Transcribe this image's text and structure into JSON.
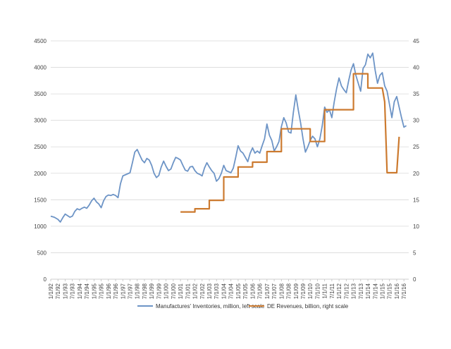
{
  "chart_data": {
    "type": "line",
    "title": "",
    "xlabel": "",
    "ylabel_left": "",
    "ylabel_right": "",
    "ylim_left": [
      0,
      4500
    ],
    "ylim_right": [
      0,
      45
    ],
    "left_ticks": [
      "0",
      "500",
      "1000",
      "1500",
      "2000",
      "2500",
      "3000",
      "3500",
      "4000",
      "4500"
    ],
    "right_ticks": [
      "0",
      "5",
      "10",
      "15",
      "20",
      "25",
      "30",
      "35",
      "40",
      "45"
    ],
    "x_tick_labels": [
      "1/1/92",
      "7/1/92",
      "1/1/93",
      "7/1/93",
      "1/1/94",
      "7/1/94",
      "1/1/95",
      "7/1/95",
      "1/1/96",
      "7/1/96",
      "1/1/97",
      "7/1/97",
      "1/1/98",
      "7/1/98",
      "1/1/99",
      "7/1/99",
      "1/1/00",
      "7/1/00",
      "1/1/01",
      "7/1/01",
      "1/1/02",
      "7/1/02",
      "1/1/03",
      "7/1/03",
      "1/1/04",
      "7/1/04",
      "1/1/05",
      "7/1/05",
      "1/1/06",
      "7/1/06",
      "1/1/07",
      "7/1/07",
      "1/1/08",
      "7/1/08",
      "1/1/09",
      "7/1/09",
      "1/1/10",
      "7/1/10",
      "1/1/11",
      "7/1/11",
      "1/1/12",
      "7/1/12",
      "1/1/13",
      "7/1/13",
      "1/1/14",
      "7/1/14",
      "1/1/15",
      "7/1/15",
      "1/1/16",
      "7/1/16"
    ],
    "grid": "horizontal",
    "legend_position": "bottom",
    "series": [
      {
        "name": "Manufactures' Inventories, million, left scale",
        "axis": "left",
        "color": "#6d94c6",
        "points": [
          [
            "1992-01",
            1190
          ],
          [
            "1992-04",
            1170
          ],
          [
            "1992-07",
            1130
          ],
          [
            "1992-09",
            1080
          ],
          [
            "1992-11",
            1160
          ],
          [
            "1993-01",
            1230
          ],
          [
            "1993-03",
            1200
          ],
          [
            "1993-05",
            1170
          ],
          [
            "1993-07",
            1190
          ],
          [
            "1993-09",
            1280
          ],
          [
            "1993-11",
            1330
          ],
          [
            "1994-01",
            1310
          ],
          [
            "1994-03",
            1340
          ],
          [
            "1994-05",
            1360
          ],
          [
            "1994-07",
            1340
          ],
          [
            "1994-09",
            1400
          ],
          [
            "1994-11",
            1480
          ],
          [
            "1995-01",
            1530
          ],
          [
            "1995-03",
            1460
          ],
          [
            "1995-05",
            1420
          ],
          [
            "1995-07",
            1350
          ],
          [
            "1995-09",
            1480
          ],
          [
            "1995-11",
            1560
          ],
          [
            "1996-01",
            1590
          ],
          [
            "1996-03",
            1580
          ],
          [
            "1996-05",
            1600
          ],
          [
            "1996-07",
            1580
          ],
          [
            "1996-09",
            1540
          ],
          [
            "1996-11",
            1800
          ],
          [
            "1997-01",
            1950
          ],
          [
            "1997-03",
            1970
          ],
          [
            "1997-05",
            1990
          ],
          [
            "1997-07",
            2010
          ],
          [
            "1997-09",
            2200
          ],
          [
            "1997-11",
            2400
          ],
          [
            "1998-01",
            2450
          ],
          [
            "1998-03",
            2350
          ],
          [
            "1998-05",
            2250
          ],
          [
            "1998-07",
            2200
          ],
          [
            "1998-09",
            2280
          ],
          [
            "1998-11",
            2250
          ],
          [
            "1999-01",
            2150
          ],
          [
            "1999-03",
            2000
          ],
          [
            "1999-05",
            1920
          ],
          [
            "1999-07",
            1960
          ],
          [
            "1999-09",
            2120
          ],
          [
            "1999-11",
            2230
          ],
          [
            "2000-01",
            2130
          ],
          [
            "2000-03",
            2050
          ],
          [
            "2000-05",
            2080
          ],
          [
            "2000-07",
            2200
          ],
          [
            "2000-09",
            2300
          ],
          [
            "2000-11",
            2280
          ],
          [
            "2001-01",
            2250
          ],
          [
            "2001-03",
            2150
          ],
          [
            "2001-05",
            2060
          ],
          [
            "2001-07",
            2040
          ],
          [
            "2001-09",
            2120
          ],
          [
            "2001-11",
            2130
          ],
          [
            "2002-01",
            2050
          ],
          [
            "2002-03",
            2000
          ],
          [
            "2002-05",
            1980
          ],
          [
            "2002-07",
            1950
          ],
          [
            "2002-09",
            2100
          ],
          [
            "2002-11",
            2200
          ],
          [
            "2003-01",
            2120
          ],
          [
            "2003-03",
            2050
          ],
          [
            "2003-05",
            2000
          ],
          [
            "2003-07",
            1850
          ],
          [
            "2003-09",
            1900
          ],
          [
            "2003-11",
            2000
          ],
          [
            "2004-01",
            2150
          ],
          [
            "2004-03",
            2050
          ],
          [
            "2004-05",
            2030
          ],
          [
            "2004-07",
            2010
          ],
          [
            "2004-09",
            2100
          ],
          [
            "2004-11",
            2300
          ],
          [
            "2005-01",
            2520
          ],
          [
            "2005-03",
            2420
          ],
          [
            "2005-05",
            2380
          ],
          [
            "2005-07",
            2300
          ],
          [
            "2005-09",
            2220
          ],
          [
            "2005-11",
            2380
          ],
          [
            "2006-01",
            2480
          ],
          [
            "2006-03",
            2380
          ],
          [
            "2006-05",
            2420
          ],
          [
            "2006-07",
            2380
          ],
          [
            "2006-09",
            2520
          ],
          [
            "2006-11",
            2650
          ],
          [
            "2007-01",
            2930
          ],
          [
            "2007-03",
            2720
          ],
          [
            "2007-05",
            2620
          ],
          [
            "2007-07",
            2420
          ],
          [
            "2007-09",
            2500
          ],
          [
            "2007-11",
            2600
          ],
          [
            "2008-01",
            2880
          ],
          [
            "2008-03",
            3050
          ],
          [
            "2008-05",
            2950
          ],
          [
            "2008-07",
            2780
          ],
          [
            "2008-09",
            2760
          ],
          [
            "2008-11",
            3150
          ],
          [
            "2009-01",
            3480
          ],
          [
            "2009-03",
            3200
          ],
          [
            "2009-05",
            2950
          ],
          [
            "2009-07",
            2650
          ],
          [
            "2009-09",
            2400
          ],
          [
            "2009-11",
            2500
          ],
          [
            "2010-01",
            2620
          ],
          [
            "2010-03",
            2700
          ],
          [
            "2010-05",
            2650
          ],
          [
            "2010-07",
            2500
          ],
          [
            "2010-09",
            2650
          ],
          [
            "2010-11",
            2900
          ],
          [
            "2011-01",
            3250
          ],
          [
            "2011-03",
            3150
          ],
          [
            "2011-05",
            3200
          ],
          [
            "2011-07",
            3050
          ],
          [
            "2011-09",
            3350
          ],
          [
            "2011-11",
            3600
          ],
          [
            "2012-01",
            3800
          ],
          [
            "2012-03",
            3650
          ],
          [
            "2012-05",
            3580
          ],
          [
            "2012-07",
            3520
          ],
          [
            "2012-09",
            3750
          ],
          [
            "2012-11",
            3950
          ],
          [
            "2013-01",
            4070
          ],
          [
            "2013-03",
            3850
          ],
          [
            "2013-05",
            3700
          ],
          [
            "2013-07",
            3550
          ],
          [
            "2013-09",
            3980
          ],
          [
            "2013-11",
            4050
          ],
          [
            "2014-01",
            4250
          ],
          [
            "2014-03",
            4180
          ],
          [
            "2014-05",
            4270
          ],
          [
            "2014-07",
            3950
          ],
          [
            "2014-09",
            3700
          ],
          [
            "2014-11",
            3850
          ],
          [
            "2015-01",
            3900
          ],
          [
            "2015-03",
            3650
          ],
          [
            "2015-05",
            3550
          ],
          [
            "2015-07",
            3300
          ],
          [
            "2015-09",
            3050
          ],
          [
            "2015-11",
            3350
          ],
          [
            "2016-01",
            3450
          ],
          [
            "2016-03",
            3250
          ],
          [
            "2016-05",
            3050
          ],
          [
            "2016-07",
            2870
          ],
          [
            "2016-09",
            2900
          ]
        ]
      },
      {
        "name": "DE Revenues, billion, right scale",
        "axis": "right",
        "color": "#cc7a2f",
        "points": [
          [
            "2001-01",
            12.7
          ],
          [
            "2002-01",
            12.7
          ],
          [
            "2002-01",
            13.3
          ],
          [
            "2003-01",
            13.3
          ],
          [
            "2003-01",
            14.9
          ],
          [
            "2004-01",
            14.9
          ],
          [
            "2004-01",
            19.3
          ],
          [
            "2005-01",
            19.3
          ],
          [
            "2005-01",
            21.2
          ],
          [
            "2006-01",
            21.2
          ],
          [
            "2006-01",
            22.1
          ],
          [
            "2007-01",
            22.1
          ],
          [
            "2007-01",
            24.1
          ],
          [
            "2008-01",
            24.1
          ],
          [
            "2008-01",
            28.4
          ],
          [
            "2010-01",
            28.4
          ],
          [
            "2010-01",
            26.0
          ],
          [
            "2011-01",
            26.0
          ],
          [
            "2011-01",
            32.0
          ],
          [
            "2013-01",
            32.0
          ],
          [
            "2013-01",
            38.8
          ],
          [
            "2014-01",
            38.8
          ],
          [
            "2014-01",
            36.1
          ],
          [
            "2015-01",
            36.1
          ],
          [
            "2015-03",
            33.5
          ],
          [
            "2015-05",
            20.1
          ],
          [
            "2016-01",
            20.1
          ],
          [
            "2016-03",
            26.9
          ]
        ]
      }
    ]
  }
}
